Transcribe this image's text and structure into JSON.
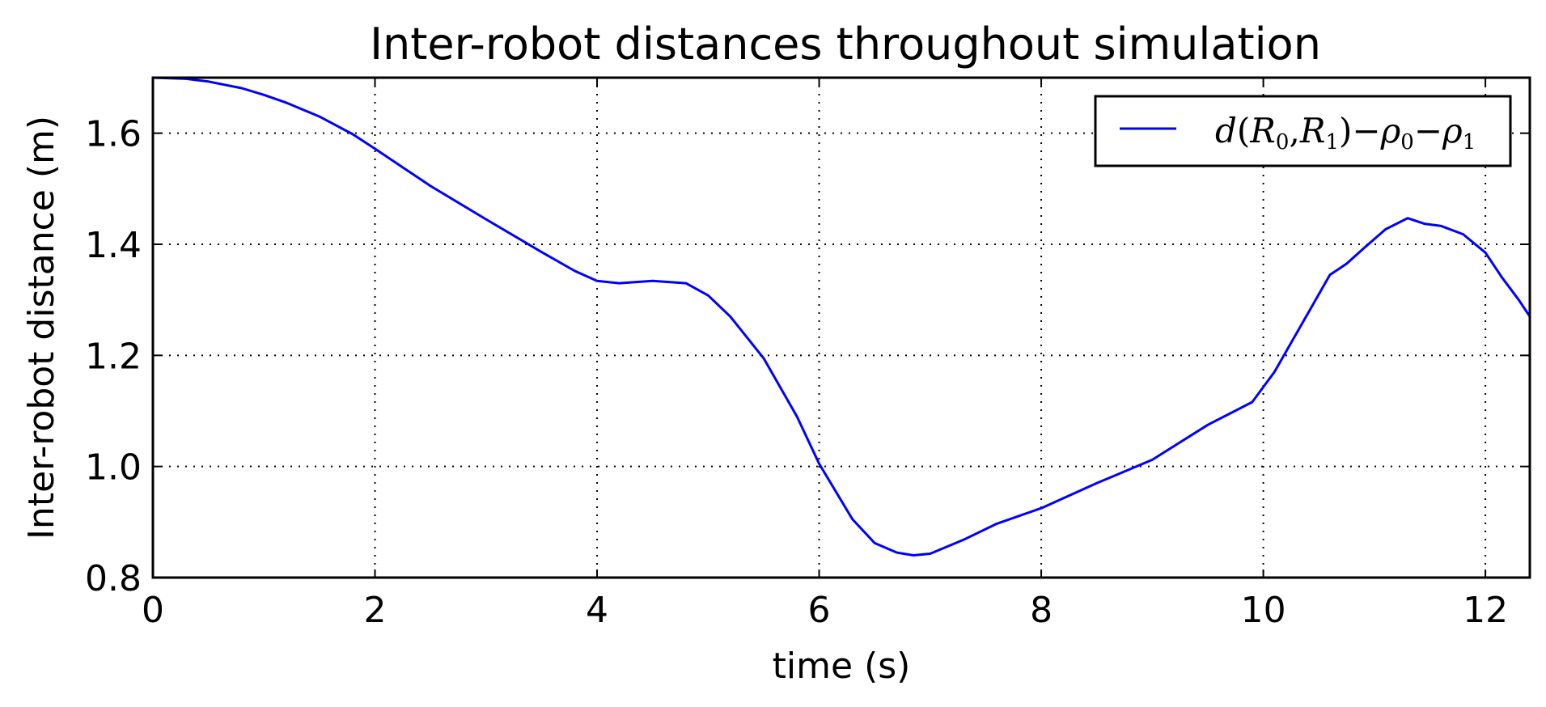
{
  "chart_data": {
    "type": "line",
    "title": "Inter-robot distances throughout simulation",
    "xlabel": "time (s)",
    "ylabel": "Inter-robot distance (m)",
    "xlim": [
      0,
      12.4
    ],
    "ylim": [
      0.8,
      1.7
    ],
    "x_ticks": [
      0,
      2,
      4,
      6,
      8,
      10,
      12
    ],
    "y_ticks": [
      0.8,
      1.0,
      1.2,
      1.4,
      1.6
    ],
    "x_tick_labels": [
      "0",
      "2",
      "4",
      "6",
      "8",
      "10",
      "12"
    ],
    "y_tick_labels": [
      "0.8",
      "1.0",
      "1.2",
      "1.4",
      "1.6"
    ],
    "grid": true,
    "legend_position": "top-right",
    "series": [
      {
        "name": "d(R0,R1)−ρ0−ρ1",
        "color": "#0000ff",
        "x": [
          0,
          0.3,
          0.5,
          0.8,
          1.0,
          1.2,
          1.5,
          1.8,
          2.0,
          2.5,
          3.0,
          3.5,
          3.8,
          4.0,
          4.2,
          4.5,
          4.8,
          5.0,
          5.2,
          5.5,
          5.8,
          6.0,
          6.3,
          6.5,
          6.7,
          6.85,
          7.0,
          7.3,
          7.6,
          8.0,
          8.5,
          9.0,
          9.5,
          9.9,
          10.1,
          10.4,
          10.6,
          10.75,
          10.9,
          11.1,
          11.3,
          11.45,
          11.6,
          11.8,
          12.0,
          12.15,
          12.3,
          12.4
        ],
        "y": [
          1.7,
          1.698,
          1.693,
          1.681,
          1.669,
          1.655,
          1.63,
          1.598,
          1.572,
          1.505,
          1.445,
          1.386,
          1.352,
          1.334,
          1.33,
          1.334,
          1.33,
          1.308,
          1.27,
          1.195,
          1.09,
          1.005,
          0.905,
          0.862,
          0.845,
          0.84,
          0.843,
          0.868,
          0.897,
          0.925,
          0.97,
          1.012,
          1.075,
          1.116,
          1.17,
          1.275,
          1.345,
          1.365,
          1.392,
          1.427,
          1.447,
          1.437,
          1.433,
          1.418,
          1.385,
          1.34,
          1.3,
          1.27
        ]
      }
    ]
  }
}
